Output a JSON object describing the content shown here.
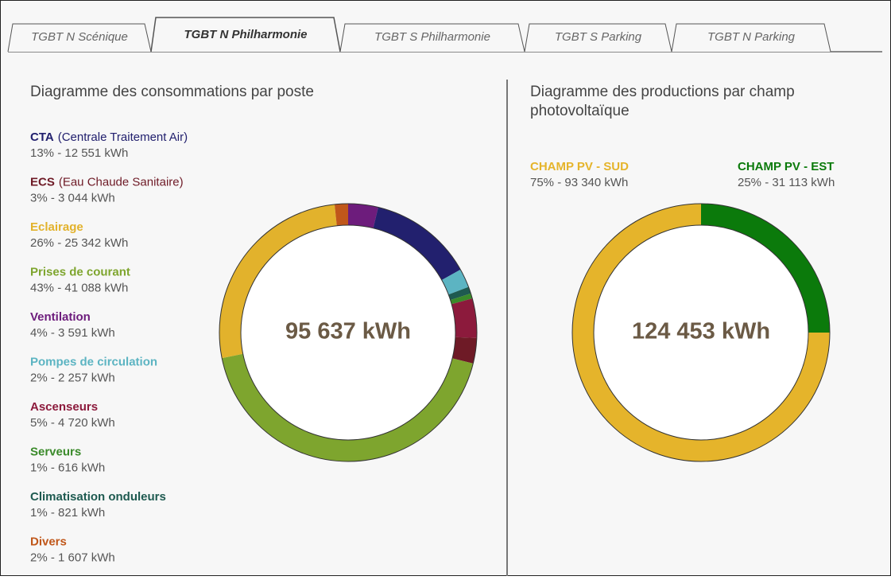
{
  "tabs": [
    "TGBT N Scénique",
    "TGBT N Philharmonie",
    "TGBT S Philharmonie",
    "TGBT S Parking",
    "TGBT N Parking"
  ],
  "chart_data": [
    {
      "type": "donut",
      "title": "Diagramme des consommations par poste",
      "center_label": "95 637 kWh",
      "categories": [
        "CTA",
        "ECS",
        "Eclairage",
        "Prises de courant",
        "Ventilation",
        "Pompes de circulation",
        "Ascenseurs",
        "Serveurs",
        "Climatisation onduleurs",
        "Divers"
      ],
      "descriptions": [
        "(Centrale Traitement Air)",
        "(Eau Chaude Sanitaire)",
        null,
        null,
        null,
        null,
        null,
        null,
        null,
        null
      ],
      "values": [
        12551,
        3044,
        25342,
        41088,
        3591,
        2257,
        4720,
        616,
        821,
        1607
      ],
      "value_labels": [
        "13% - 12 551 kWh",
        "3% - 3 044 kWh",
        "26% - 25 342 kWh",
        "43% - 41 088 kWh",
        "4% - 3 591 kWh",
        "2% - 2 257 kWh",
        "5% - 4 720 kWh",
        "1% - 616 kWh",
        "1% - 821 kWh",
        "2% - 1 607 kWh"
      ],
      "colors": [
        "#22206e",
        "#6e1a26",
        "#e2b22c",
        "#7ea52e",
        "#6d1c7c",
        "#5cb4c2",
        "#8c1a3c",
        "#3a8a2a",
        "#1e5a50",
        "#c0571a"
      ]
    },
    {
      "type": "donut",
      "title": "Diagramme des productions par champ photovoltaïque",
      "center_label": "124 453 kWh",
      "categories": [
        "CHAMP PV - SUD",
        "CHAMP PV - EST"
      ],
      "values": [
        93340,
        31113
      ],
      "value_labels": [
        "75% - 93 340 kWh",
        "25% - 31 113 kWh"
      ],
      "colors": [
        "#e5b42b",
        "#0b7a0b"
      ]
    }
  ]
}
